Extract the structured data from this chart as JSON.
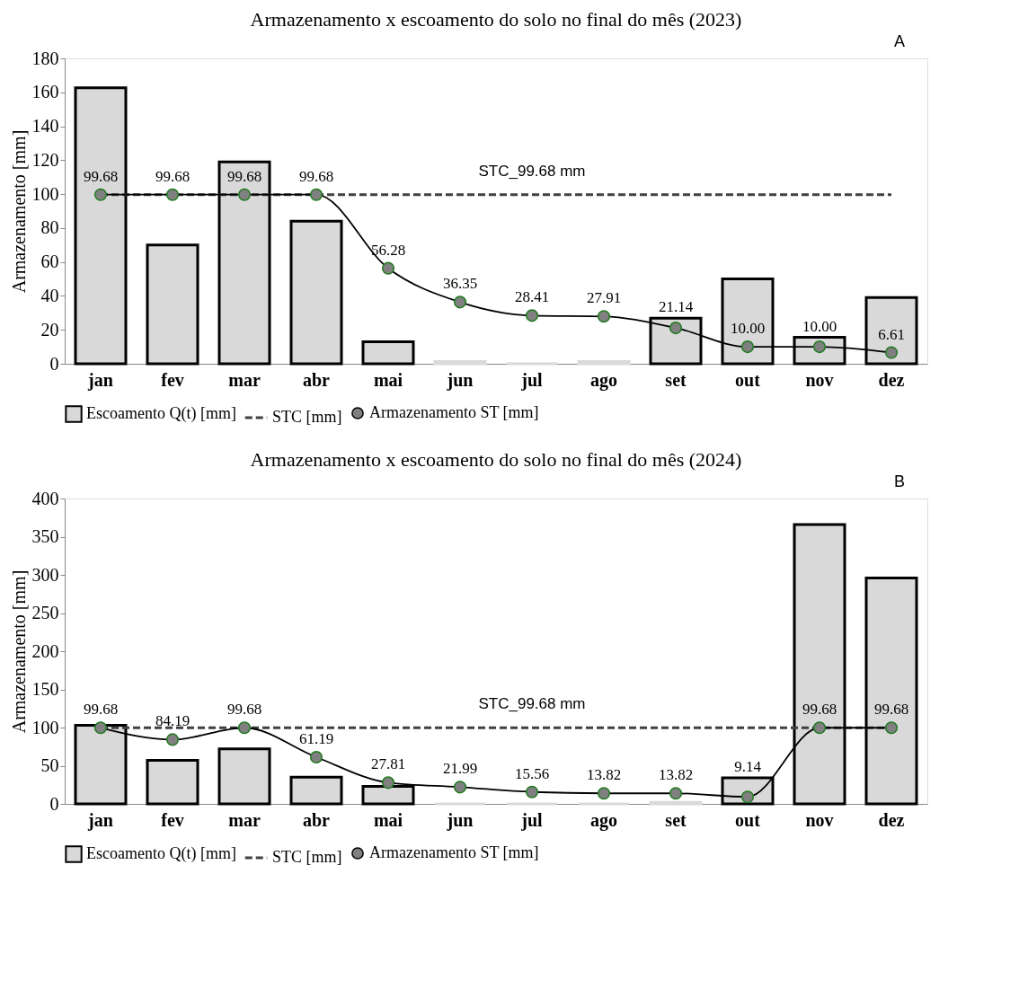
{
  "chart_data": [
    {
      "type": "bar",
      "title": "Armazenamento x escoamento do solo no final do mês (2023)",
      "ylabel": "Armazenamento [mm]",
      "categories": [
        "jan",
        "fev",
        "mar",
        "abr",
        "mai",
        "jun",
        "jul",
        "ago",
        "set",
        "out",
        "nov",
        "dez"
      ],
      "ylim": [
        0,
        180
      ],
      "yticks": [
        0,
        20,
        40,
        60,
        80,
        100,
        120,
        140,
        160,
        180
      ],
      "grid": false,
      "legend": "bottom",
      "series": [
        {
          "name": "Escoamento Q(t) [mm]",
          "type": "bar",
          "color": "#d9d9d9",
          "values": [
            162.6,
            70,
            119,
            84,
            13,
            1.3,
            0,
            1.3,
            26.9,
            50,
            15.6,
            39
          ]
        },
        {
          "name": "STC [mm]",
          "type": "line",
          "line_style": "dashed",
          "marker": "none",
          "color": "#404040",
          "values": [
            99.68,
            99.68,
            99.68,
            99.68,
            99.68,
            99.68,
            99.68,
            99.68,
            99.68,
            99.68,
            99.68,
            99.68
          ]
        },
        {
          "name": "Armazenamento ST [mm]",
          "type": "line",
          "line_style": "solid",
          "marker": "circle",
          "color": "#808080",
          "values": [
            99.68,
            99.68,
            99.68,
            99.68,
            56.28,
            36.35,
            28.41,
            27.91,
            21.14,
            10.0,
            10.0,
            6.61
          ],
          "value_labels": [
            "99.68",
            "99.68",
            "99.68",
            "99.68",
            "56.28",
            "36.35",
            "28.41",
            "27.91",
            "21.14",
            "10.00",
            "10.00",
            "6.61"
          ]
        }
      ],
      "annotations": [
        {
          "text": "STC_99.68 mm",
          "x": "jul",
          "y": 99.68
        },
        "A"
      ]
    },
    {
      "type": "bar",
      "title": "Armazenamento x escoamento do solo no final do mês (2024)",
      "ylabel": "Armazenamento [mm]",
      "categories": [
        "jan",
        "fev",
        "mar",
        "abr",
        "mai",
        "jun",
        "jul",
        "ago",
        "set",
        "out",
        "nov",
        "dez"
      ],
      "ylim": [
        0,
        400
      ],
      "yticks": [
        0,
        50,
        100,
        150,
        200,
        250,
        300,
        350,
        400
      ],
      "grid": false,
      "legend": "bottom",
      "series": [
        {
          "name": "Escoamento Q(t) [mm]",
          "type": "bar",
          "color": "#d9d9d9",
          "values": [
            103,
            57,
            72,
            35,
            23,
            0,
            0,
            0,
            2,
            34,
            366,
            296
          ]
        },
        {
          "name": "STC [mm]",
          "type": "line",
          "line_style": "dashed",
          "marker": "none",
          "color": "#404040",
          "values": [
            99.68,
            99.68,
            99.68,
            99.68,
            99.68,
            99.68,
            99.68,
            99.68,
            99.68,
            99.68,
            99.68,
            99.68
          ]
        },
        {
          "name": "Armazenamento ST [mm]",
          "type": "line",
          "line_style": "solid",
          "marker": "circle",
          "color": "#808080",
          "values": [
            99.68,
            84.19,
            99.68,
            61.19,
            27.81,
            21.99,
            15.56,
            13.82,
            13.82,
            9.14,
            99.68,
            99.68
          ],
          "value_labels": [
            "99.68",
            "84.19",
            "99.68",
            "61.19",
            "27.81",
            "21.99",
            "15.56",
            "13.82",
            "13.82",
            "9.14",
            "99.68",
            "99.68"
          ]
        }
      ],
      "annotations": [
        {
          "text": "STC_99.68 mm",
          "x": "jul",
          "y": 99.68
        },
        "B"
      ]
    }
  ]
}
